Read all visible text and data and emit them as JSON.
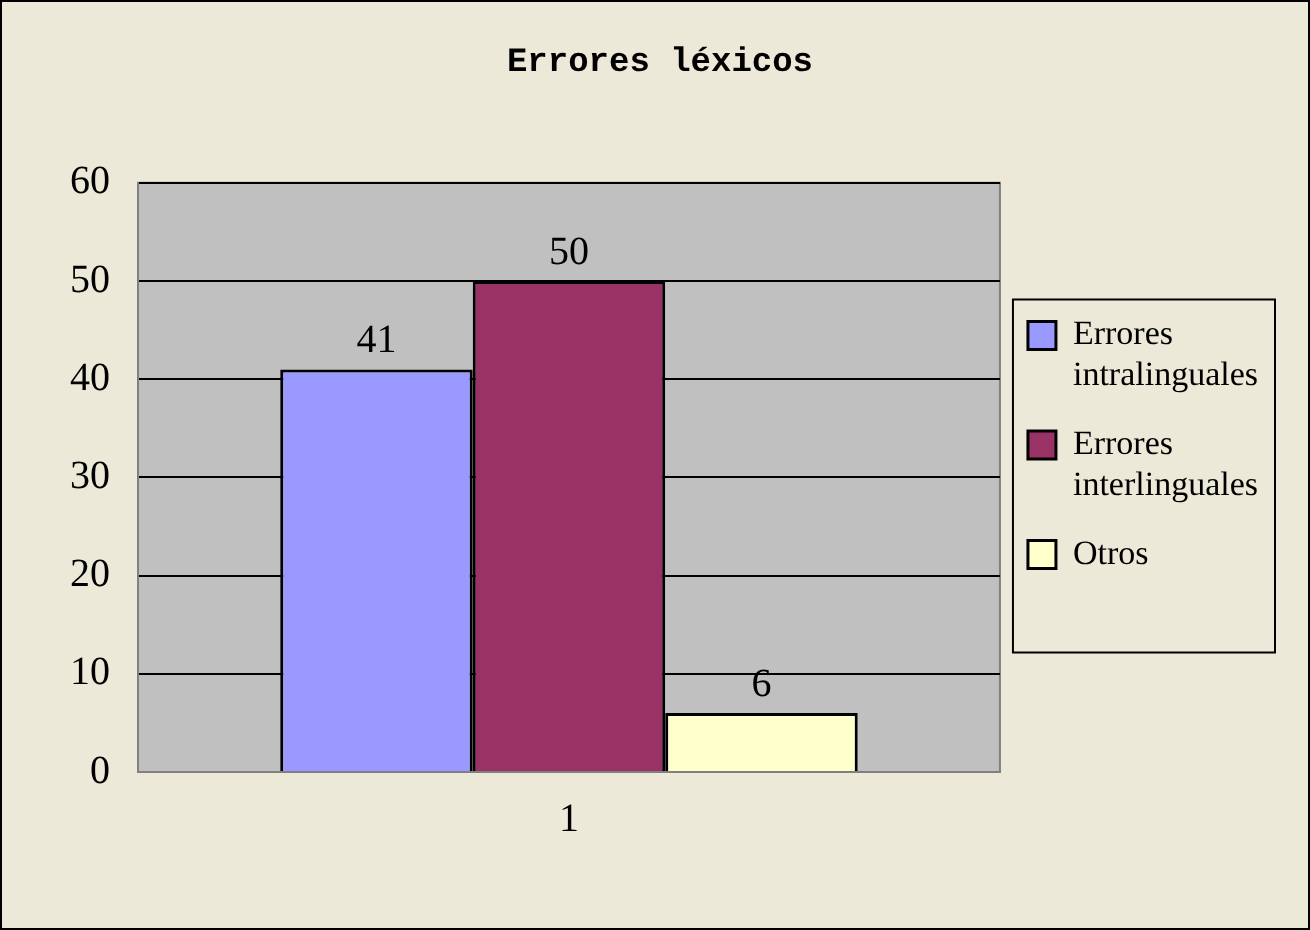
{
  "chart_data": {
    "type": "bar",
    "title": "Errores léxicos",
    "categories": [
      "1"
    ],
    "series": [
      {
        "name": "Errores intralinguales",
        "color": "#9999ff",
        "values": [
          41
        ]
      },
      {
        "name": "Errores interlinguales",
        "color": "#993366",
        "values": [
          50
        ]
      },
      {
        "name": "Otros",
        "color": "#ffffcc",
        "values": [
          6
        ]
      }
    ],
    "ylim": [
      0,
      60
    ],
    "yticks": [
      0,
      10,
      20,
      30,
      40,
      50,
      60
    ],
    "grid": "y",
    "legend": "right",
    "data_labels": true
  }
}
